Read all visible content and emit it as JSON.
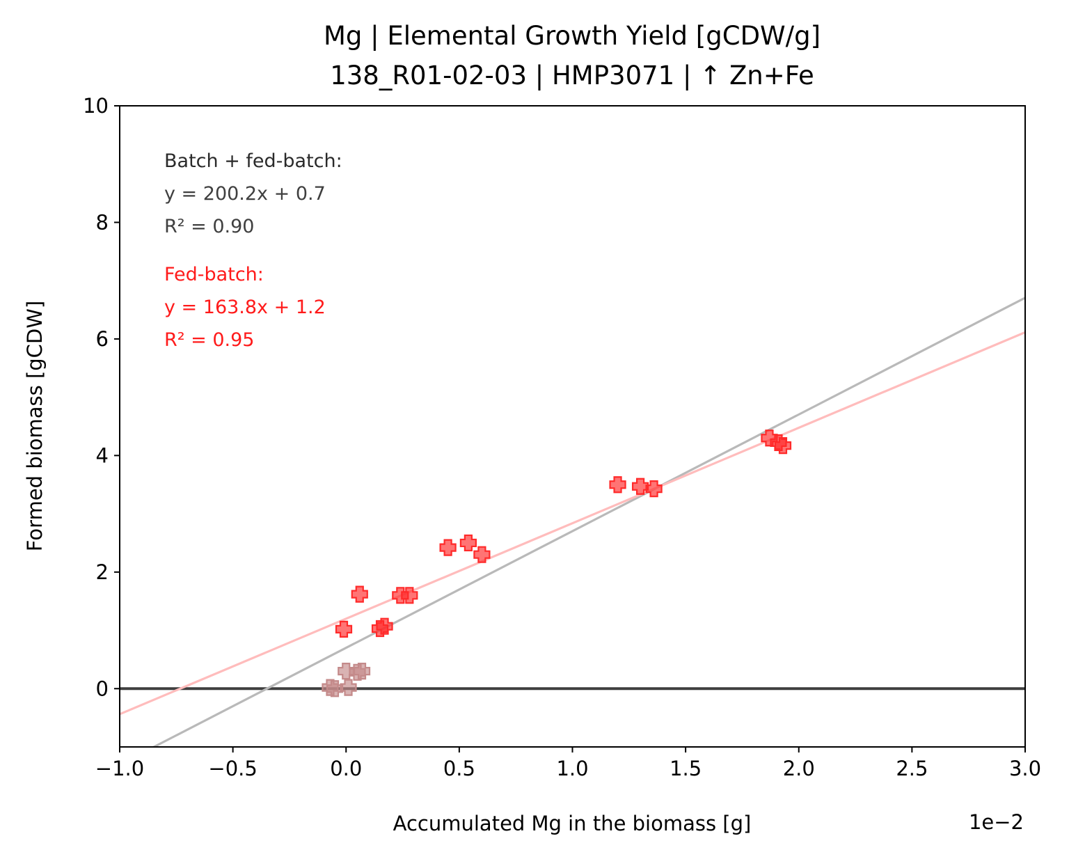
{
  "chart_data": {
    "type": "scatter",
    "title": [
      "Mg  |  Elemental Growth Yield [gCDW/g]",
      "138_R01-02-03  |  HMP3071  |  ↑ Zn+Fe"
    ],
    "xlabel": "Accumulated Mg in the biomass [g]",
    "ylabel": "Formed biomass [gCDW]",
    "x_offset_label": "1e−2",
    "x_scale_factor": 0.01,
    "xlim": [
      -1.0,
      3.0
    ],
    "ylim": [
      -1,
      10
    ],
    "x_ticks": [
      -1.0,
      -0.5,
      0.0,
      0.5,
      1.0,
      1.5,
      2.0,
      2.5,
      3.0
    ],
    "x_tick_labels": [
      "−1.0",
      "−0.5",
      "0.0",
      "0.5",
      "1.0",
      "1.5",
      "2.0",
      "2.5",
      "3.0"
    ],
    "y_ticks": [
      0,
      2,
      4,
      6,
      8,
      10
    ],
    "y_tick_labels": [
      "0",
      "2",
      "4",
      "6",
      "8",
      "10"
    ],
    "grid": false,
    "series": [
      {
        "role": "batch",
        "marker": "plus",
        "color": "#c48a8a",
        "points": [
          {
            "x": -0.07,
            "y": 0.02
          },
          {
            "x": -0.05,
            "y": 0.0
          },
          {
            "x": 0.0,
            "y": 0.3
          },
          {
            "x": 0.01,
            "y": 0.02
          },
          {
            "x": 0.05,
            "y": 0.28
          },
          {
            "x": 0.07,
            "y": 0.3
          }
        ]
      },
      {
        "role": "fed-batch",
        "marker": "plus",
        "color": "#ff2a2a",
        "points": [
          {
            "x": -0.01,
            "y": 1.02
          },
          {
            "x": 0.06,
            "y": 1.62
          },
          {
            "x": 0.15,
            "y": 1.03
          },
          {
            "x": 0.17,
            "y": 1.07
          },
          {
            "x": 0.24,
            "y": 1.6
          },
          {
            "x": 0.28,
            "y": 1.6
          },
          {
            "x": 0.45,
            "y": 2.42
          },
          {
            "x": 0.54,
            "y": 2.5
          },
          {
            "x": 0.6,
            "y": 2.3
          },
          {
            "x": 1.2,
            "y": 3.5
          },
          {
            "x": 1.3,
            "y": 3.47
          },
          {
            "x": 1.36,
            "y": 3.43
          },
          {
            "x": 1.87,
            "y": 4.3
          },
          {
            "x": 1.91,
            "y": 4.22
          },
          {
            "x": 1.93,
            "y": 4.17
          }
        ]
      }
    ],
    "fits": [
      {
        "role": "batch + fed-batch",
        "slope": 200.2,
        "intercept": 0.7,
        "color": "#b9b9b9",
        "label_lines": [
          "Batch + fed-batch:",
          "y = 200.2x + 0.7",
          "R² = 0.90"
        ],
        "label_color": "#3f3f3f"
      },
      {
        "role": "fed-batch",
        "slope": 163.8,
        "intercept": 1.2,
        "color": "#ffbcbc",
        "label_lines": [
          "Fed-batch:",
          "y = 163.8x + 1.2",
          "R² = 0.95"
        ],
        "label_color": "#ff1a1a"
      }
    ],
    "reference_line": {
      "y": 0,
      "color": "#3f3f3f"
    }
  }
}
